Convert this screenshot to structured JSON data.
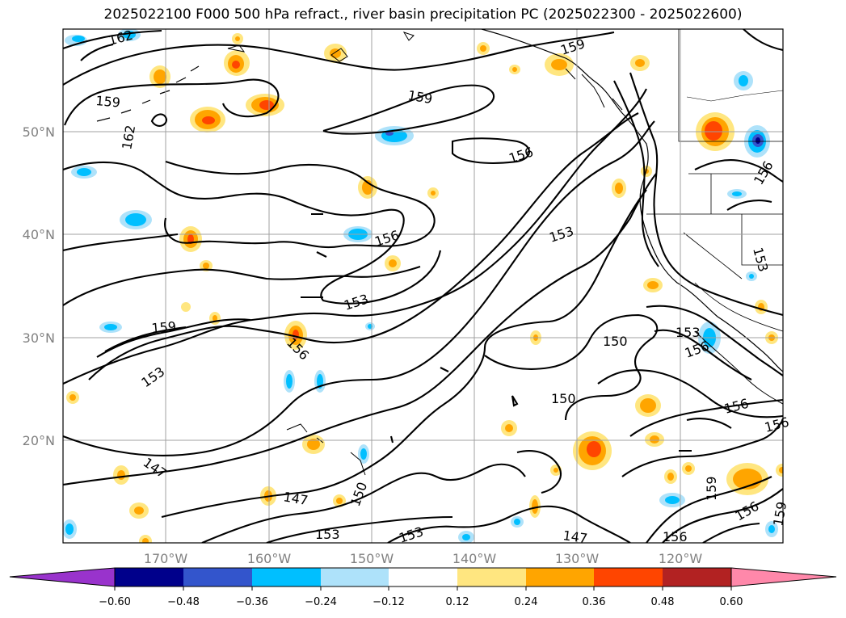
{
  "title": "2025022100 F000 500 hPa refract., river basin precipitation PC (2025022300 - 2025022600)",
  "latitude_labels": [
    "50°N",
    "40°N",
    "30°N",
    "20°N"
  ],
  "longitude_labels": [
    "170°W",
    "160°W",
    "150°W",
    "140°W",
    "130°W",
    "120°W"
  ],
  "contour_labels": [
    "162",
    "159",
    "162",
    "159",
    "159",
    "156",
    "156",
    "156",
    "153",
    "153",
    "159",
    "153",
    "156",
    "150",
    "150",
    "153",
    "156",
    "156",
    "156",
    "147",
    "147",
    "150",
    "153",
    "153",
    "147",
    "156",
    "159",
    "159",
    "156",
    "153"
  ],
  "colorbar": {
    "ticks": [
      "−0.60",
      "−0.48",
      "−0.36",
      "−0.24",
      "−0.12",
      "0.12",
      "0.24",
      "0.36",
      "0.48",
      "0.60"
    ],
    "colors": [
      "#9933cc",
      "#00008b",
      "#3355cc",
      "#00bfff",
      "#aee2fa",
      "#ffffff",
      "#ffe680",
      "#ffa500",
      "#ff4500",
      "#b22222",
      "#ff88aa"
    ]
  },
  "fill_colors": {
    "neg_light": "#aee2fa",
    "neg_mid": "#00bfff",
    "neg_dark": "#3355cc",
    "neg_darkest": "#00008b",
    "pos_light": "#ffe680",
    "pos_mid": "#ffa500",
    "pos_dark": "#ff4500"
  }
}
